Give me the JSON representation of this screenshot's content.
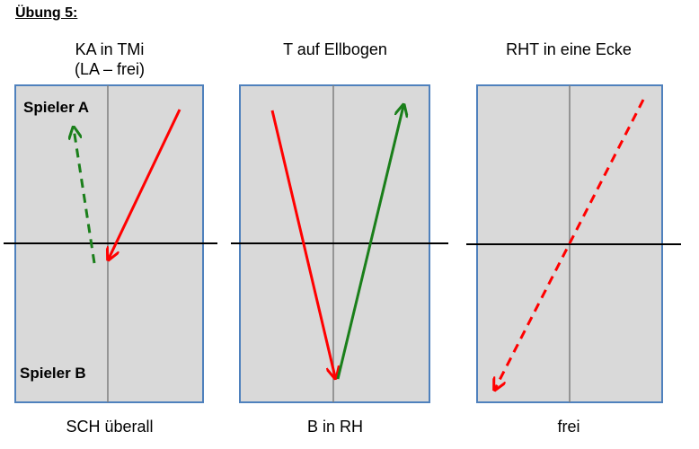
{
  "heading": "Übung 5:",
  "panels": [
    {
      "title_line1": "KA in TMi",
      "title_line2": "(LA – frei)",
      "caption": "SCH überall",
      "label_top": "Spieler A",
      "label_bottom": "Spieler B"
    },
    {
      "title_line1": "T auf Ellbogen",
      "title_line2": "",
      "caption": "B in RH"
    },
    {
      "title_line1": "RHT in eine Ecke",
      "title_line2": "",
      "caption": "frei"
    }
  ],
  "colors": {
    "court_fill": "#d9d9d9",
    "court_border": "#4f81bd",
    "net": "#000000",
    "center_line": "#7f7f7f",
    "arrow_red": "#ff0000",
    "arrow_green": "#1a7f1a"
  }
}
